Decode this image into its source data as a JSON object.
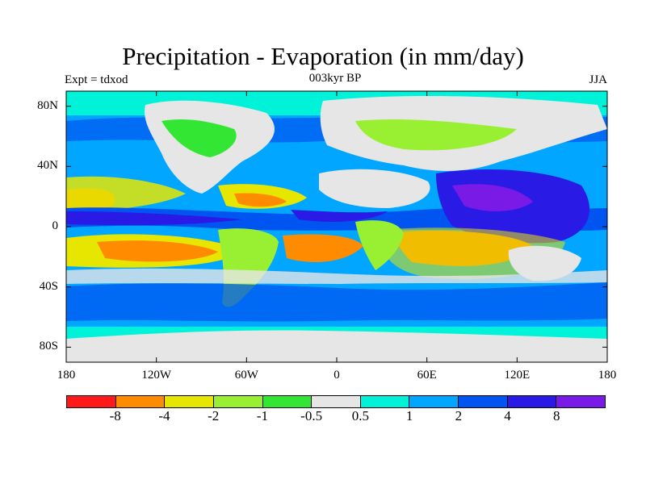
{
  "header": {
    "title": "Precipitation - Evaporation (in mm/day)",
    "experiment": "Expt = tdxod",
    "period": "003kyr BP",
    "season": "JJA"
  },
  "axes": {
    "lat_labels": [
      "80N",
      "40N",
      "0",
      "40S",
      "80S"
    ],
    "lat_values": [
      80,
      40,
      0,
      -40,
      -80
    ],
    "lon_labels": [
      "180",
      "120W",
      "60W",
      "0",
      "60E",
      "120E",
      "180"
    ],
    "lon_values": [
      -180,
      -120,
      -60,
      0,
      60,
      120,
      180
    ]
  },
  "colorbar": {
    "colors": [
      "#ff1a1a",
      "#ff8c00",
      "#e6e600",
      "#99f033",
      "#33e633",
      "#e6e6e6",
      "#00f2d9",
      "#00a6ff",
      "#0055f0",
      "#2a1ae6",
      "#7a1ae6"
    ],
    "labels": [
      "-8",
      "-4",
      "-2",
      "-1",
      "-0.5",
      "0.5",
      "1",
      "2",
      "4",
      "8"
    ]
  },
  "map_colors": {
    "ocean": "#00a6ff",
    "polar": "#00f2d9",
    "dry": "#ff8c00",
    "semi_dry": "#e6e600",
    "neutral": "#e6e6e6",
    "wet": "#0055f0",
    "very_wet": "#2a1ae6",
    "light_green": "#99f033",
    "green": "#33e633"
  }
}
